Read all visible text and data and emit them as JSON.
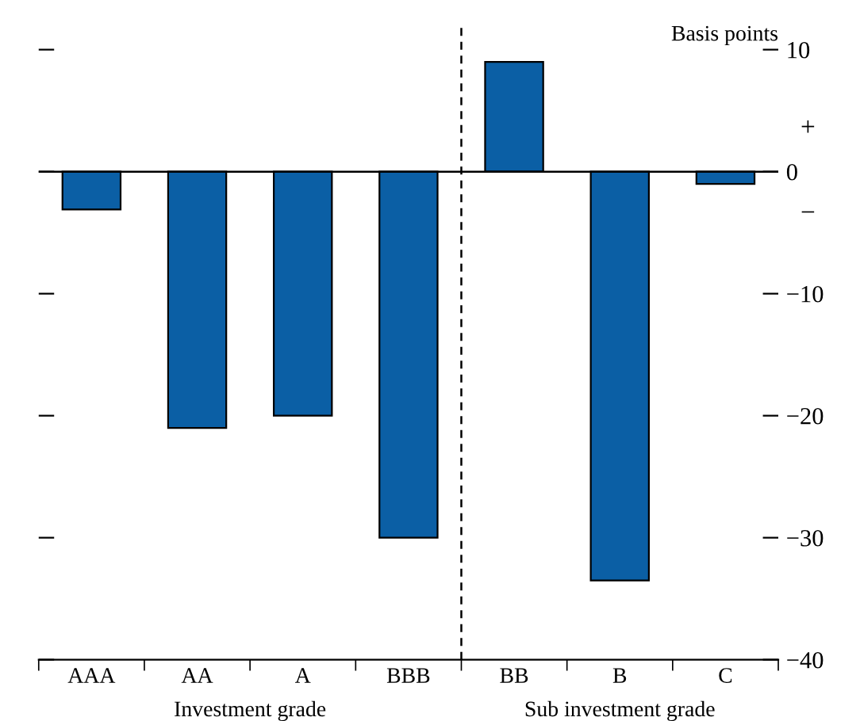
{
  "chart_data": {
    "type": "bar",
    "categories": [
      "AAA",
      "AA",
      "A",
      "BBB",
      "BB",
      "B",
      "C"
    ],
    "values": [
      -3.1,
      -21,
      -20,
      -30,
      9,
      -33.5,
      -1
    ],
    "color": "#0b5fa5",
    "ylabel": "Basis points",
    "ylim": [
      -40,
      12
    ],
    "yticks": [
      {
        "value": 10,
        "label": "10"
      },
      {
        "value": 0,
        "label": "0"
      },
      {
        "value": -10,
        "label": "−10"
      },
      {
        "value": -20,
        "label": "−20"
      },
      {
        "value": -30,
        "label": "−30"
      },
      {
        "value": -40,
        "label": "−40"
      }
    ],
    "ref_lines": [
      {
        "axis": "y",
        "value": 0,
        "line_style": "solid",
        "color": "#000000"
      },
      {
        "axis": "x",
        "value": "BB",
        "line_style": "dashed",
        "color": "#000000"
      }
    ],
    "annotations": [
      "Investment grade",
      "Sub investment grade",
      "+",
      "−"
    ],
    "grid": false,
    "legend": false
  }
}
